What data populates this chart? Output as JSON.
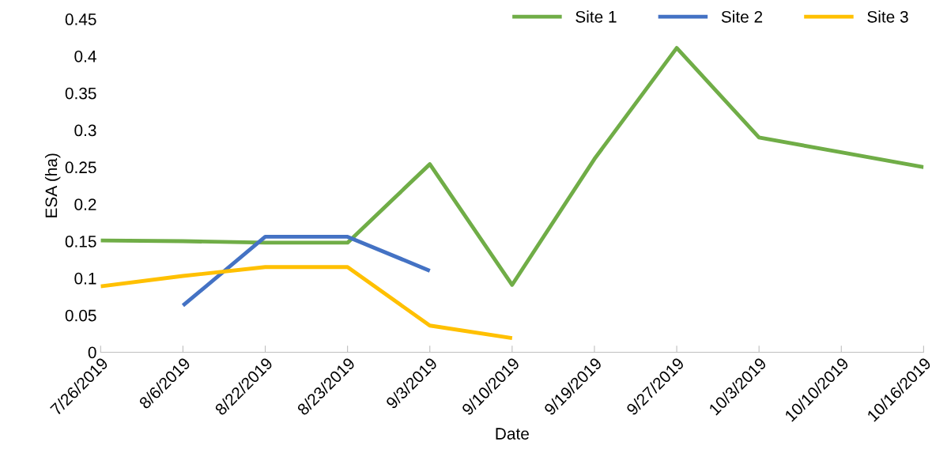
{
  "chart_data": {
    "type": "line",
    "xlabel": "Date",
    "ylabel": "ESA (ha)",
    "categories": [
      "7/26/2019",
      "8/6/2019",
      "8/22/2019",
      "8/23/2019",
      "9/3/2019",
      "9/10/2019",
      "9/19/2019",
      "9/27/2019",
      "10/3/2019",
      "10/10/2019",
      "10/16/2019"
    ],
    "series": [
      {
        "name": "Site 1",
        "color": "#70ad47",
        "values": [
          0.151,
          0.15,
          0.148,
          0.148,
          0.254,
          0.091,
          0.261,
          0.411,
          0.29,
          0.27,
          0.25
        ]
      },
      {
        "name": "Site 2",
        "color": "#4472c4",
        "values": [
          null,
          0.063,
          0.156,
          0.156,
          0.11,
          null,
          null,
          null,
          null,
          null,
          null
        ]
      },
      {
        "name": "Site 3",
        "color": "#ffc000",
        "values": [
          0.089,
          0.103,
          0.115,
          0.115,
          0.036,
          0.019,
          null,
          null,
          null,
          null,
          null
        ]
      }
    ],
    "ylim": [
      0,
      0.45
    ],
    "yticks": [
      {
        "value": 0,
        "label": "0"
      },
      0.05,
      0.1,
      0.15,
      0.2,
      0.25,
      0.3,
      0.35,
      0.4,
      0.45
    ],
    "grid": false,
    "legend": "top right",
    "marker": "none",
    "line_style": "solid"
  }
}
